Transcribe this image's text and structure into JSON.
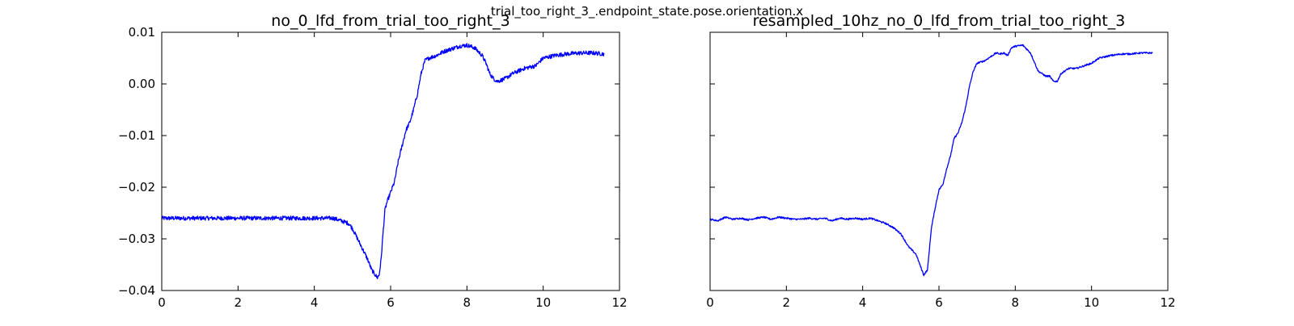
{
  "figure": {
    "suptitle": "trial_too_right_3_.endpoint_state.pose.orientation.x"
  },
  "chart_data": [
    {
      "type": "line",
      "title": "no_0_lfd_from_trial_too_right_3",
      "xlim": [
        0,
        12
      ],
      "ylim": [
        -0.04,
        0.01
      ],
      "xticks": [
        0,
        2,
        4,
        6,
        8,
        10,
        12
      ],
      "xtick_labels": [
        "0",
        "2",
        "4",
        "6",
        "8",
        "10",
        "12"
      ],
      "yticks": [
        -0.04,
        -0.03,
        -0.02,
        -0.01,
        0.0,
        0.01
      ],
      "ytick_labels": [
        "−0.04",
        "−0.03",
        "−0.02",
        "−0.01",
        "0.00",
        "0.01"
      ],
      "grid": false,
      "legend": "none",
      "series": [
        {
          "color": "#0000ff",
          "noise": 0.0005,
          "x": [
            0,
            0.5,
            1.0,
            1.5,
            2.0,
            2.5,
            3.0,
            3.5,
            4.0,
            4.5,
            4.7,
            4.9,
            5.0,
            5.1,
            5.2,
            5.3,
            5.4,
            5.5,
            5.6,
            5.65,
            5.7,
            5.75,
            5.8,
            5.85,
            5.9,
            6.0,
            6.1,
            6.2,
            6.3,
            6.4,
            6.5,
            6.6,
            6.7,
            6.8,
            6.9,
            7.0,
            7.2,
            7.4,
            7.6,
            7.8,
            8.0,
            8.2,
            8.4,
            8.5,
            8.6,
            8.7,
            8.8,
            9.0,
            9.2,
            9.5,
            9.8,
            10.0,
            10.3,
            10.6,
            11.0,
            11.3,
            11.6
          ],
          "y": [
            -0.026,
            -0.026,
            -0.026,
            -0.026,
            -0.026,
            -0.026,
            -0.026,
            -0.026,
            -0.026,
            -0.026,
            -0.0265,
            -0.027,
            -0.028,
            -0.0295,
            -0.031,
            -0.0325,
            -0.034,
            -0.036,
            -0.037,
            -0.0375,
            -0.037,
            -0.034,
            -0.029,
            -0.0245,
            -0.023,
            -0.021,
            -0.019,
            -0.015,
            -0.012,
            -0.009,
            -0.0075,
            -0.005,
            -0.002,
            0.002,
            0.0045,
            0.005,
            0.0055,
            0.0063,
            0.0068,
            0.0073,
            0.0075,
            0.007,
            0.0055,
            0.004,
            0.002,
            0.001,
            0.0005,
            0.001,
            0.002,
            0.003,
            0.0035,
            0.005,
            0.0055,
            0.0058,
            0.006,
            0.006,
            0.0058
          ]
        }
      ]
    },
    {
      "type": "line",
      "title": "resampled_10hz_no_0_lfd_from_trial_too_right_3",
      "xlim": [
        0,
        12
      ],
      "ylim": [
        -0.04,
        0.01
      ],
      "xticks": [
        0,
        2,
        4,
        6,
        8,
        10,
        12
      ],
      "xtick_labels": [
        "0",
        "2",
        "4",
        "6",
        "8",
        "10",
        "12"
      ],
      "yticks": [
        -0.04,
        -0.03,
        -0.02,
        -0.01,
        0.0,
        0.01
      ],
      "ytick_labels": [],
      "grid": false,
      "legend": "none",
      "series": [
        {
          "color": "#0000ff",
          "noise": 0.0002,
          "x": [
            0,
            0.2,
            0.4,
            0.6,
            0.8,
            1.0,
            1.2,
            1.4,
            1.6,
            1.8,
            2.0,
            2.2,
            2.4,
            2.6,
            2.8,
            3.0,
            3.2,
            3.4,
            3.6,
            3.8,
            4.0,
            4.2,
            4.4,
            4.6,
            4.8,
            5.0,
            5.2,
            5.4,
            5.6,
            5.7,
            5.8,
            5.9,
            6.0,
            6.1,
            6.2,
            6.3,
            6.4,
            6.5,
            6.6,
            6.7,
            6.8,
            6.9,
            7.0,
            7.2,
            7.4,
            7.5,
            7.6,
            7.7,
            7.8,
            7.9,
            8.0,
            8.2,
            8.4,
            8.6,
            8.8,
            8.9,
            9.0,
            9.1,
            9.2,
            9.4,
            9.6,
            9.8,
            10.0,
            10.2,
            10.5,
            10.8,
            11.0,
            11.3,
            11.5,
            11.6
          ],
          "y": [
            -0.0262,
            -0.0265,
            -0.0258,
            -0.0262,
            -0.026,
            -0.0263,
            -0.026,
            -0.0258,
            -0.0262,
            -0.0258,
            -0.026,
            -0.0262,
            -0.0262,
            -0.026,
            -0.0262,
            -0.026,
            -0.0265,
            -0.026,
            -0.0262,
            -0.026,
            -0.0262,
            -0.026,
            -0.0265,
            -0.027,
            -0.0278,
            -0.029,
            -0.0315,
            -0.033,
            -0.037,
            -0.036,
            -0.028,
            -0.024,
            -0.0205,
            -0.0195,
            -0.0165,
            -0.014,
            -0.0105,
            -0.0095,
            -0.0075,
            -0.0045,
            -0.0005,
            0.0025,
            0.004,
            0.0045,
            0.0055,
            0.006,
            0.0058,
            0.006,
            0.0055,
            0.007,
            0.0073,
            0.0075,
            0.006,
            0.0025,
            0.0015,
            0.0015,
            0.0005,
            0.0005,
            0.002,
            0.003,
            0.003,
            0.0035,
            0.004,
            0.005,
            0.0055,
            0.0058,
            0.0058,
            0.006,
            0.006,
            0.006
          ]
        }
      ]
    }
  ]
}
